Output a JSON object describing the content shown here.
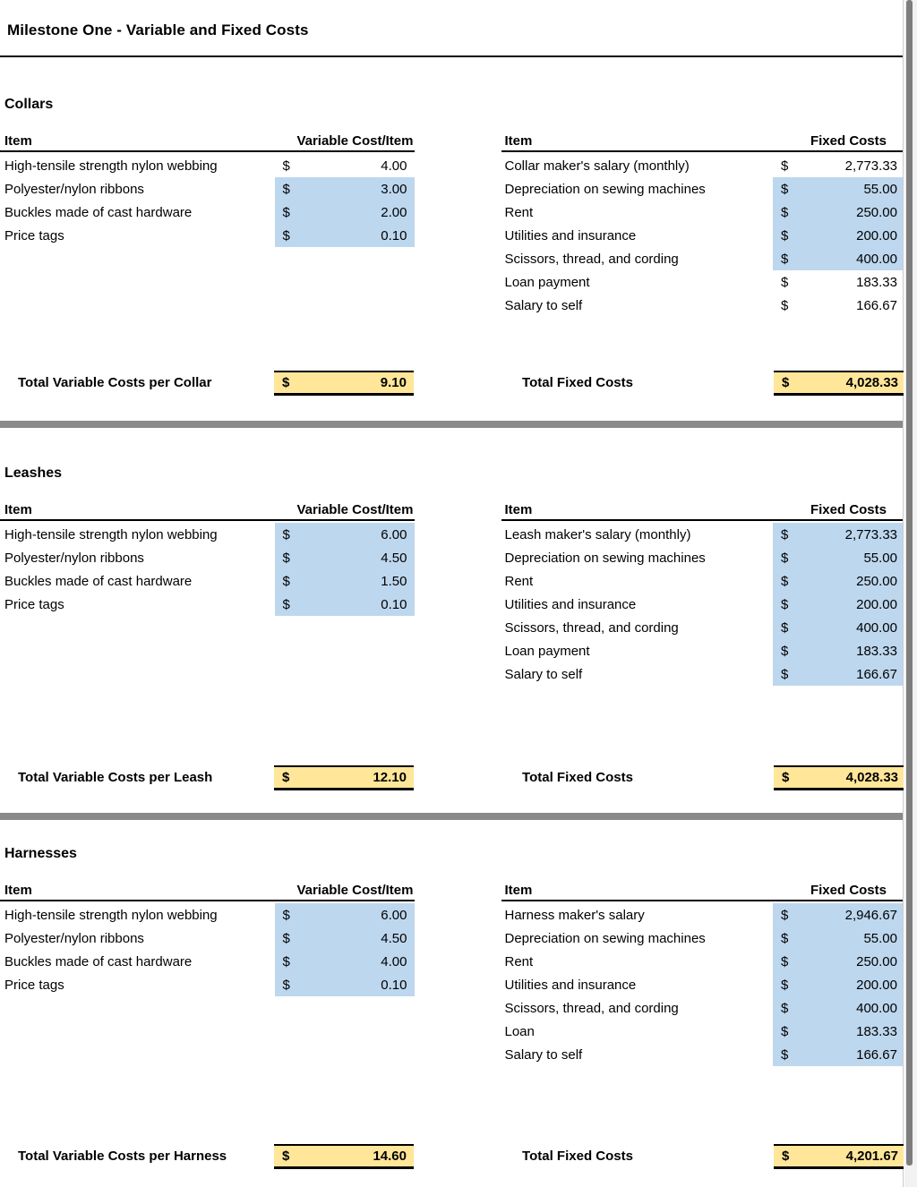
{
  "title": "Milestone One - Variable and Fixed Costs",
  "currency": "$",
  "colors": {
    "highlight_blue": "#BDD7EE",
    "total_yellow": "#FFE699",
    "divider_gray": "#8A8A8A"
  },
  "sections": [
    {
      "name": "Collars",
      "variable": {
        "item_header": "Item",
        "cost_header": "Variable Cost/Item",
        "rows": [
          {
            "item": "High-tensile strength nylon webbing",
            "value": "4.00"
          },
          {
            "item": "Polyester/nylon ribbons",
            "value": "3.00"
          },
          {
            "item": "Buckles made of cast hardware",
            "value": "2.00"
          },
          {
            "item": "Price tags",
            "value": "0.10"
          }
        ],
        "total_label": "Total Variable Costs per Collar",
        "total_value": "9.10"
      },
      "fixed": {
        "item_header": "Item",
        "cost_header": "Fixed Costs",
        "rows": [
          {
            "item": "Collar maker's salary (monthly)",
            "value": "2,773.33"
          },
          {
            "item": "Depreciation on sewing machines",
            "value": "55.00"
          },
          {
            "item": "Rent",
            "value": "250.00"
          },
          {
            "item": "Utilities and insurance",
            "value": "200.00"
          },
          {
            "item": "Scissors, thread, and cording",
            "value": "400.00"
          },
          {
            "item": "Loan payment",
            "value": "183.33"
          },
          {
            "item": "Salary to self",
            "value": "166.67"
          }
        ],
        "total_label": "Total Fixed Costs",
        "total_value": "4,028.33"
      }
    },
    {
      "name": "Leashes",
      "variable": {
        "item_header": "Item",
        "cost_header": "Variable Cost/Item",
        "rows": [
          {
            "item": "High-tensile strength nylon webbing",
            "value": "6.00"
          },
          {
            "item": "Polyester/nylon ribbons",
            "value": "4.50"
          },
          {
            "item": "Buckles made of cast hardware",
            "value": "1.50"
          },
          {
            "item": "Price tags",
            "value": "0.10"
          }
        ],
        "total_label": "Total Variable Costs per Leash",
        "total_value": "12.10"
      },
      "fixed": {
        "item_header": "Item",
        "cost_header": "Fixed Costs",
        "rows": [
          {
            "item": "Leash maker's salary (monthly)",
            "value": "2,773.33"
          },
          {
            "item": "Depreciation on sewing machines",
            "value": "55.00"
          },
          {
            "item": "Rent",
            "value": "250.00"
          },
          {
            "item": "Utilities and insurance",
            "value": "200.00"
          },
          {
            "item": "Scissors, thread, and cording",
            "value": "400.00"
          },
          {
            "item": "Loan payment",
            "value": "183.33"
          },
          {
            "item": "Salary to self",
            "value": "166.67"
          }
        ],
        "total_label": "Total Fixed Costs",
        "total_value": "4,028.33"
      }
    },
    {
      "name": "Harnesses",
      "variable": {
        "item_header": "Item",
        "cost_header": "Variable Cost/Item",
        "rows": [
          {
            "item": "High-tensile strength nylon webbing",
            "value": "6.00"
          },
          {
            "item": "Polyester/nylon ribbons",
            "value": "4.50"
          },
          {
            "item": "Buckles made of cast hardware",
            "value": "4.00"
          },
          {
            "item": "Price tags",
            "value": "0.10"
          }
        ],
        "total_label": "Total Variable Costs per Harness",
        "total_value": "14.60"
      },
      "fixed": {
        "item_header": "Item",
        "cost_header": "Fixed Costs",
        "rows": [
          {
            "item": "Harness maker's salary",
            "value": "2,946.67"
          },
          {
            "item": "Depreciation on sewing machines",
            "value": "55.00"
          },
          {
            "item": "Rent",
            "value": "250.00"
          },
          {
            "item": "Utilities and insurance",
            "value": "200.00"
          },
          {
            "item": "Scissors, thread, and cording",
            "value": "400.00"
          },
          {
            "item": "Loan",
            "value": "183.33"
          },
          {
            "item": "Salary to self",
            "value": "166.67"
          }
        ],
        "total_label": "Total Fixed Costs",
        "total_value": "4,201.67"
      }
    }
  ]
}
